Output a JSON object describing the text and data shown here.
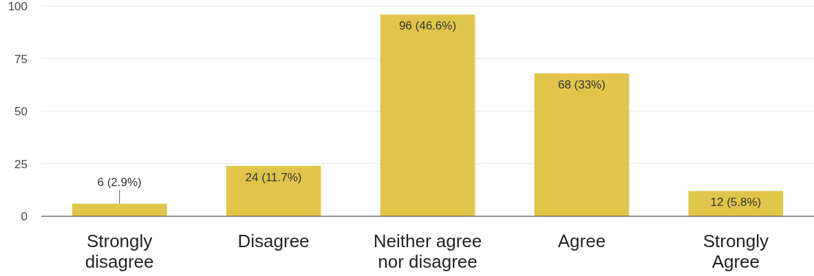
{
  "chart_data": {
    "type": "bar",
    "categories": [
      "Strongly disagree",
      "Disagree",
      "Neither agree nor disagree",
      "Agree",
      "Strongly Agree"
    ],
    "values": [
      6,
      24,
      96,
      68,
      12
    ],
    "value_labels": [
      "6 (2.9%)",
      "24 (11.7%)",
      "96 (46.6%)",
      "68 (33%)",
      "12 (5.8%)"
    ],
    "color": "#e0c54a",
    "ylim": [
      0,
      100
    ],
    "yticks": [
      0,
      25,
      50,
      75,
      100
    ],
    "grid": "y"
  }
}
